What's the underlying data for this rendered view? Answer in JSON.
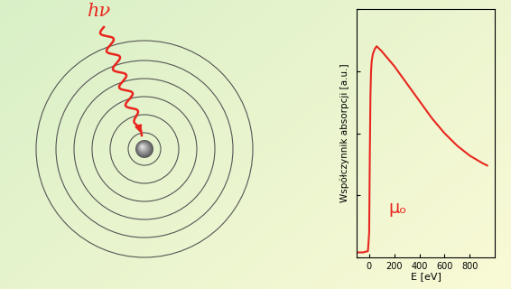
{
  "chart_data": {
    "type": "line",
    "x": [
      -90,
      -50,
      -10,
      0,
      5,
      10,
      15,
      20,
      30,
      45,
      60,
      80,
      100,
      150,
      200,
      300,
      400,
      500,
      600,
      700,
      800,
      900,
      940
    ],
    "values": [
      0.02,
      0.02,
      0.025,
      0.1,
      0.4,
      0.65,
      0.75,
      0.79,
      0.82,
      0.84,
      0.85,
      0.84,
      0.83,
      0.8,
      0.77,
      0.7,
      0.63,
      0.56,
      0.5,
      0.45,
      0.41,
      0.38,
      0.37
    ],
    "color": "#e8261e",
    "xlabel": "E [eV]",
    "ylabel": "Współczynnik absorpcji [a.u.]",
    "annotation": "μₒ",
    "xlim": [
      -100,
      1000
    ],
    "ylim": [
      0,
      1
    ],
    "xticks": [
      0,
      200,
      400,
      600,
      800
    ],
    "yticks": [
      0,
      0.25,
      0.5,
      0.75,
      1
    ],
    "tick_labels": "x"
  },
  "diagram": {
    "photon_label": "hν"
  }
}
